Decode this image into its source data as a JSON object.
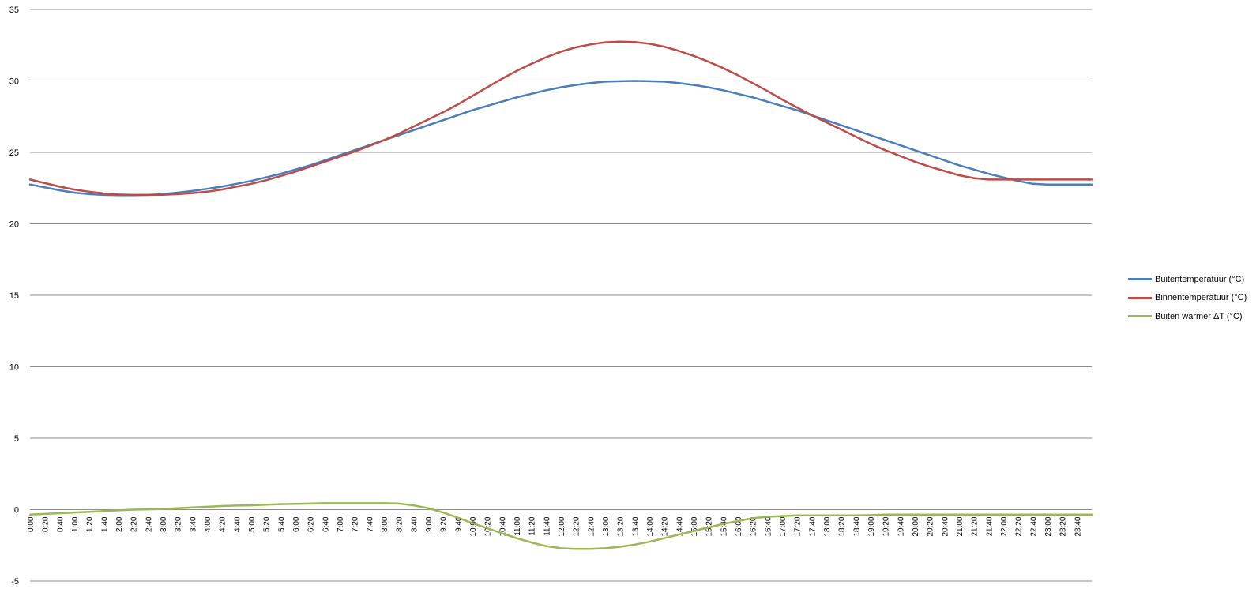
{
  "chart_data": {
    "type": "line",
    "y_ticks": [
      "35",
      "30",
      "25",
      "20",
      "15",
      "10",
      "5",
      "0",
      "-5"
    ],
    "ylim": [
      -5,
      35
    ],
    "grid": true,
    "legend_position": "right",
    "x_ticks": [
      "0:00",
      "0:20",
      "0:40",
      "1:00",
      "1:20",
      "1:40",
      "2:00",
      "2:20",
      "2:40",
      "3:00",
      "3:20",
      "3:40",
      "4:00",
      "4:20",
      "4:40",
      "5:00",
      "5:20",
      "5:40",
      "6:00",
      "6:20",
      "6:40",
      "7:00",
      "7:20",
      "7:40",
      "8:00",
      "8:20",
      "8:40",
      "9:00",
      "9:20",
      "9:40",
      "10:00",
      "10:20",
      "10:40",
      "11:00",
      "11:20",
      "11:40",
      "12:00",
      "12:20",
      "12:40",
      "13:00",
      "13:20",
      "13:40",
      "14:00",
      "14:20",
      "14:40",
      "15:00",
      "15:20",
      "15:40",
      "16:00",
      "16:20",
      "16:40",
      "17:00",
      "17:20",
      "17:40",
      "18:00",
      "18:20",
      "18:40",
      "19:00",
      "19:20",
      "19:40",
      "20:00",
      "20:20",
      "20:40",
      "21:00",
      "21:20",
      "21:40",
      "22:00",
      "22:20",
      "22:40",
      "23:00",
      "23:20",
      "23:40"
    ],
    "series": [
      {
        "name": "Buitentemperatuur (°C)",
        "color": "#4a7ebb",
        "values": [
          22.75,
          22.55,
          22.35,
          22.18,
          22.08,
          22.02,
          22.0,
          22.0,
          22.02,
          22.08,
          22.18,
          22.3,
          22.45,
          22.6,
          22.8,
          23.0,
          23.25,
          23.5,
          23.8,
          24.1,
          24.45,
          24.8,
          25.15,
          25.5,
          25.85,
          26.2,
          26.55,
          26.9,
          27.25,
          27.6,
          27.95,
          28.25,
          28.55,
          28.85,
          29.1,
          29.35,
          29.55,
          29.72,
          29.85,
          29.95,
          29.98,
          30.0,
          29.98,
          29.95,
          29.85,
          29.72,
          29.55,
          29.35,
          29.1,
          28.85,
          28.55,
          28.25,
          27.95,
          27.6,
          27.25,
          26.9,
          26.55,
          26.2,
          25.85,
          25.5,
          25.15,
          24.8,
          24.45,
          24.1,
          23.8,
          23.5,
          23.25,
          23.0,
          22.8,
          22.75,
          22.75,
          22.75
        ],
        "end_value": 22.75
      },
      {
        "name": "Binnentemperatuur (°C)",
        "color": "#be4b48",
        "values": [
          23.1,
          22.85,
          22.6,
          22.4,
          22.25,
          22.12,
          22.05,
          22.02,
          22.02,
          22.03,
          22.08,
          22.15,
          22.25,
          22.4,
          22.6,
          22.8,
          23.05,
          23.35,
          23.65,
          24.0,
          24.35,
          24.7,
          25.05,
          25.45,
          25.85,
          26.3,
          26.8,
          27.3,
          27.8,
          28.35,
          28.95,
          29.55,
          30.15,
          30.7,
          31.2,
          31.65,
          32.05,
          32.35,
          32.55,
          32.7,
          32.75,
          32.72,
          32.6,
          32.4,
          32.1,
          31.75,
          31.35,
          30.9,
          30.4,
          29.85,
          29.3,
          28.7,
          28.15,
          27.6,
          27.1,
          26.6,
          26.1,
          25.6,
          25.15,
          24.75,
          24.35,
          24.0,
          23.7,
          23.4,
          23.2,
          23.1,
          23.1,
          23.1,
          23.1,
          23.1,
          23.1,
          23.1
        ],
        "end_value": 23.1
      },
      {
        "name": "Buiten warmer  ΔT (°C)",
        "color": "#98b954",
        "values": [
          -0.35,
          -0.3,
          -0.25,
          -0.2,
          -0.15,
          -0.1,
          -0.05,
          0.0,
          0.02,
          0.05,
          0.1,
          0.15,
          0.2,
          0.25,
          0.28,
          0.3,
          0.35,
          0.38,
          0.4,
          0.42,
          0.45,
          0.45,
          0.45,
          0.45,
          0.45,
          0.42,
          0.3,
          0.1,
          -0.2,
          -0.55,
          -0.95,
          -1.3,
          -1.65,
          -2.0,
          -2.3,
          -2.55,
          -2.7,
          -2.75,
          -2.75,
          -2.7,
          -2.6,
          -2.45,
          -2.25,
          -2.0,
          -1.75,
          -1.5,
          -1.25,
          -1.0,
          -0.8,
          -0.6,
          -0.5,
          -0.45,
          -0.4,
          -0.4,
          -0.4,
          -0.4,
          -0.4,
          -0.38,
          -0.35,
          -0.35,
          -0.35,
          -0.35,
          -0.35,
          -0.35,
          -0.35,
          -0.35,
          -0.35,
          -0.35,
          -0.35,
          -0.35,
          -0.35,
          -0.35
        ],
        "end_value": -0.35
      }
    ]
  }
}
